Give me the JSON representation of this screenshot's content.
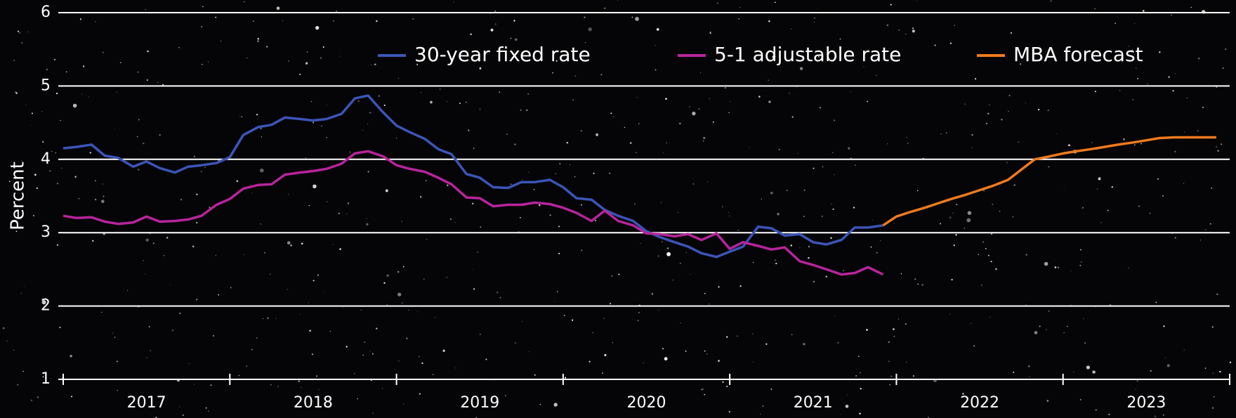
{
  "chart_data": {
    "type": "line",
    "y_label": "Percent",
    "categories": [
      "2017",
      "2018",
      "2019",
      "2020",
      "2021",
      "2022",
      "2023"
    ],
    "x": [
      2017,
      2017.08,
      2017.17,
      2017.25,
      2017.33,
      2017.42,
      2017.5,
      2017.58,
      2017.67,
      2017.75,
      2017.83,
      2017.92,
      2018,
      2018.08,
      2018.17,
      2018.25,
      2018.33,
      2018.42,
      2018.5,
      2018.58,
      2018.67,
      2018.75,
      2018.83,
      2018.92,
      2019,
      2019.08,
      2019.17,
      2019.25,
      2019.33,
      2019.42,
      2019.5,
      2019.58,
      2019.67,
      2019.75,
      2019.83,
      2019.92,
      2020,
      2020.08,
      2020.17,
      2020.25,
      2020.33,
      2020.42,
      2020.5,
      2020.58,
      2020.67,
      2020.75,
      2020.83,
      2020.92,
      2021,
      2021.08,
      2021.17,
      2021.25,
      2021.33,
      2021.42,
      2021.5,
      2021.58,
      2021.67,
      2021.75,
      2021.83,
      2021.92,
      2022,
      2022.08,
      2022.17,
      2022.25,
      2022.33,
      2022.42,
      2022.5,
      2022.58,
      2022.67,
      2022.75,
      2022.83,
      2022.92,
      2023,
      2023.08,
      2023.17,
      2023.25,
      2023.33,
      2023.42,
      2023.5,
      2023.58,
      2023.67,
      2023.75,
      2023.83,
      2023.92
    ],
    "series": [
      {
        "name": "30-year fixed rate",
        "color": "#3b55b8",
        "values": [
          4.15,
          4.17,
          4.2,
          4.05,
          4.02,
          3.9,
          3.97,
          3.88,
          3.82,
          3.9,
          3.92,
          3.95,
          4.03,
          4.33,
          4.44,
          4.47,
          4.57,
          4.55,
          4.53,
          4.55,
          4.62,
          4.83,
          4.87,
          4.64,
          4.46,
          4.37,
          4.28,
          4.14,
          4.07,
          3.8,
          3.75,
          3.62,
          3.61,
          3.69,
          3.69,
          3.72,
          3.62,
          3.47,
          3.45,
          3.31,
          3.23,
          3.16,
          3.02,
          2.94,
          2.87,
          2.81,
          2.72,
          2.67,
          2.74,
          2.81,
          3.08,
          3.06,
          2.96,
          2.98,
          2.87,
          2.84,
          2.9,
          3.07,
          3.07,
          3.1,
          null,
          null,
          null,
          null,
          null,
          null,
          null,
          null,
          null,
          null,
          null,
          null,
          null,
          null,
          null,
          null,
          null,
          null,
          null,
          null,
          null,
          null,
          null,
          null
        ]
      },
      {
        "name": "5-1 adjustable rate",
        "color": "#b8249c",
        "values": [
          3.23,
          3.2,
          3.21,
          3.15,
          3.12,
          3.14,
          3.22,
          3.15,
          3.16,
          3.18,
          3.23,
          3.38,
          3.46,
          3.6,
          3.65,
          3.66,
          3.79,
          3.82,
          3.84,
          3.87,
          3.94,
          4.08,
          4.11,
          4.04,
          3.92,
          3.87,
          3.83,
          3.75,
          3.66,
          3.48,
          3.47,
          3.36,
          3.38,
          3.38,
          3.41,
          3.39,
          3.34,
          3.27,
          3.16,
          3.3,
          3.16,
          3.1,
          2.99,
          2.98,
          2.95,
          2.98,
          2.9,
          2.99,
          2.78,
          2.87,
          2.82,
          2.77,
          2.8,
          2.61,
          2.56,
          2.5,
          2.43,
          2.45,
          2.53,
          2.43,
          null,
          null,
          null,
          null,
          null,
          null,
          null,
          null,
          null,
          null,
          null,
          null,
          null,
          null,
          null,
          null,
          null,
          null,
          null,
          null,
          null,
          null,
          null,
          null
        ]
      },
      {
        "name": "MBA forecast",
        "color": "#f07a1e",
        "values": [
          null,
          null,
          null,
          null,
          null,
          null,
          null,
          null,
          null,
          null,
          null,
          null,
          null,
          null,
          null,
          null,
          null,
          null,
          null,
          null,
          null,
          null,
          null,
          null,
          null,
          null,
          null,
          null,
          null,
          null,
          null,
          null,
          null,
          null,
          null,
          null,
          null,
          null,
          null,
          null,
          null,
          null,
          null,
          null,
          null,
          null,
          null,
          null,
          null,
          null,
          null,
          null,
          null,
          null,
          null,
          null,
          null,
          null,
          null,
          3.1,
          3.22,
          3.28,
          3.34,
          3.4,
          3.46,
          3.52,
          3.58,
          3.64,
          3.72,
          3.86,
          4.0,
          4.04,
          4.08,
          4.11,
          4.14,
          4.17,
          4.2,
          4.23,
          4.26,
          4.29,
          4.3,
          4.3,
          4.3,
          4.3
        ]
      }
    ],
    "xlim": [
      2017,
      2024
    ],
    "ylim": [
      1,
      6
    ],
    "yticks": [
      1,
      2,
      3,
      4,
      5,
      6
    ],
    "grid": true,
    "legend": "top-right"
  }
}
